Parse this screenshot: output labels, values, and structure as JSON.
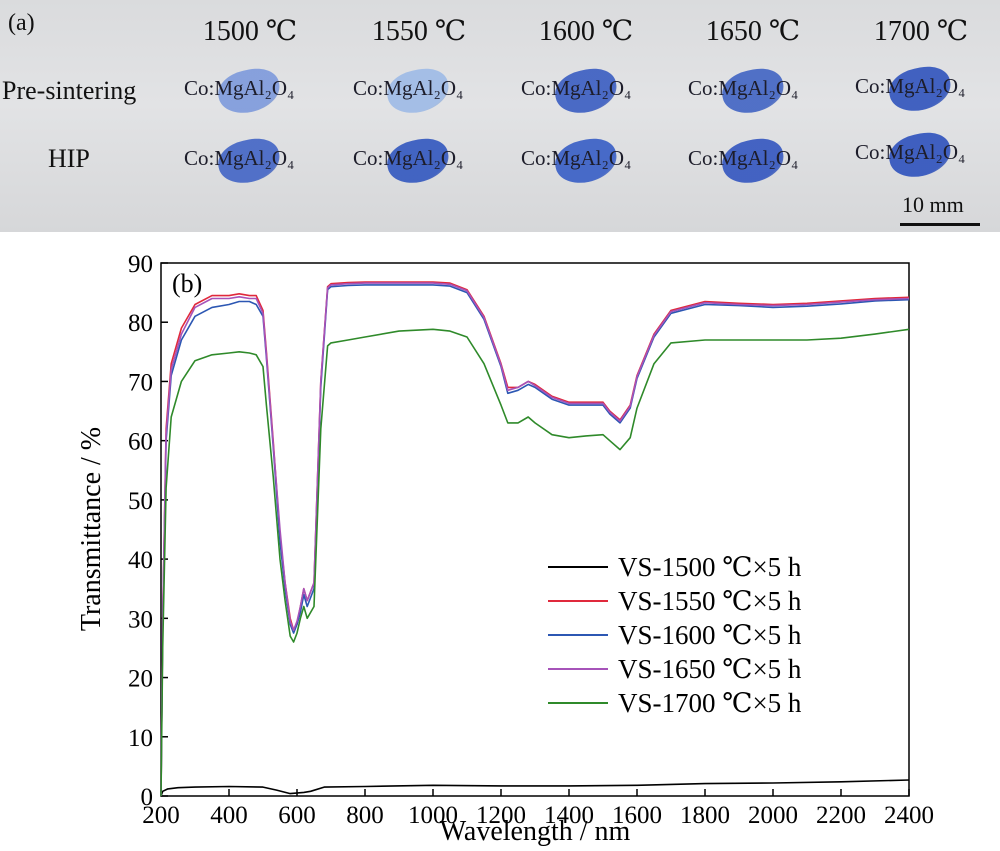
{
  "photo": {
    "panel_label": "(a)",
    "temperatures": [
      "1500 ℃",
      "1550 ℃",
      "1600 ℃",
      "1650 ℃",
      "1700 ℃"
    ],
    "rows": [
      {
        "label": "Pre-sintering",
        "sample_text": "Co:MgAl₂O₄",
        "colors": [
          "#7f9bdc",
          "#9fbbe6",
          "#3d5fc2",
          "#4466c4",
          "#3356bd"
        ]
      },
      {
        "label": "HIP",
        "sample_text": "Co:MgAl₂O₄",
        "colors": [
          "#4567c6",
          "#3559bf",
          "#3a60c6",
          "#3658c0",
          "#3154bd"
        ]
      }
    ],
    "scale_bar": "10 mm"
  },
  "chart_data": {
    "type": "line",
    "panel_label": "(b)",
    "xlabel": "Wavelength / nm",
    "ylabel": "Transmittance / %",
    "xlim": [
      200,
      2400
    ],
    "ylim": [
      0,
      90
    ],
    "xticks": [
      200,
      400,
      600,
      800,
      1000,
      1200,
      1400,
      1600,
      1800,
      2000,
      2200,
      2400
    ],
    "yticks": [
      0,
      10,
      20,
      30,
      40,
      50,
      60,
      70,
      80,
      90
    ],
    "grid": false,
    "legend_position": "lower-right",
    "series": [
      {
        "name": "VS-1500 ℃×5 h",
        "color": "#000000",
        "x": [
          200,
          205,
          220,
          250,
          300,
          400,
          500,
          540,
          580,
          620,
          640,
          680,
          800,
          1000,
          1200,
          1400,
          1600,
          1800,
          2000,
          2200,
          2400
        ],
        "y": [
          0,
          0.8,
          1.2,
          1.4,
          1.5,
          1.6,
          1.5,
          1.0,
          0.4,
          0.6,
          0.8,
          1.5,
          1.6,
          1.8,
          1.7,
          1.7,
          1.8,
          2.1,
          2.2,
          2.4,
          2.7
        ]
      },
      {
        "name": "VS-1550 ℃×5 h",
        "color": "#e0293c",
        "x": [
          200,
          205,
          215,
          230,
          260,
          300,
          350,
          400,
          430,
          460,
          480,
          500,
          510,
          530,
          550,
          565,
          580,
          590,
          600,
          610,
          620,
          630,
          650,
          670,
          690,
          700,
          750,
          800,
          900,
          1000,
          1050,
          1100,
          1150,
          1200,
          1220,
          1250,
          1280,
          1300,
          1350,
          1400,
          1450,
          1500,
          1520,
          1550,
          1580,
          1600,
          1650,
          1700,
          1800,
          1900,
          2000,
          2100,
          2200,
          2300,
          2400
        ],
        "y": [
          0,
          30,
          62,
          73,
          79,
          83,
          84.5,
          84.5,
          84.8,
          84.5,
          84.5,
          82,
          75,
          60,
          44,
          36,
          30,
          28,
          29,
          32,
          35,
          33,
          36,
          70,
          86,
          86.5,
          86.7,
          86.8,
          86.8,
          86.8,
          86.6,
          85.5,
          81,
          73,
          69,
          69,
          70,
          69.5,
          67.5,
          66.5,
          66.5,
          66.5,
          65,
          63.5,
          66,
          71,
          78,
          82,
          83.5,
          83.2,
          83,
          83.2,
          83.6,
          84,
          84.2
        ]
      },
      {
        "name": "VS-1600 ℃×5 h",
        "color": "#2c57b3",
        "x": [
          200,
          205,
          215,
          230,
          260,
          300,
          350,
          400,
          430,
          460,
          480,
          500,
          510,
          530,
          550,
          565,
          580,
          590,
          600,
          610,
          620,
          630,
          650,
          670,
          690,
          700,
          750,
          800,
          900,
          1000,
          1050,
          1100,
          1150,
          1200,
          1220,
          1250,
          1280,
          1300,
          1350,
          1400,
          1450,
          1500,
          1520,
          1550,
          1580,
          1600,
          1650,
          1700,
          1800,
          1900,
          2000,
          2100,
          2200,
          2300,
          2400
        ],
        "y": [
          0,
          29,
          60,
          71,
          77,
          81,
          82.5,
          83,
          83.5,
          83.5,
          83,
          81,
          74,
          59,
          43,
          35,
          29,
          27.5,
          29,
          31,
          34,
          32,
          35,
          69,
          85.5,
          86,
          86.2,
          86.3,
          86.3,
          86.3,
          86.1,
          85,
          80.5,
          72.5,
          68,
          68.5,
          69.5,
          69,
          67,
          66,
          66,
          66,
          64.5,
          63,
          65.5,
          70.5,
          77.5,
          81.5,
          83,
          82.8,
          82.5,
          82.7,
          83.1,
          83.6,
          83.8
        ]
      },
      {
        "name": "VS-1650 ℃×5 h",
        "color": "#a653b9",
        "x": [
          200,
          205,
          215,
          230,
          260,
          300,
          350,
          400,
          430,
          460,
          480,
          500,
          510,
          530,
          550,
          565,
          580,
          590,
          600,
          610,
          620,
          630,
          650,
          670,
          690,
          700,
          750,
          800,
          900,
          1000,
          1050,
          1100,
          1150,
          1200,
          1220,
          1250,
          1280,
          1300,
          1350,
          1400,
          1450,
          1500,
          1520,
          1550,
          1580,
          1600,
          1650,
          1700,
          1800,
          1900,
          2000,
          2100,
          2200,
          2300,
          2400
        ],
        "y": [
          0,
          30,
          61,
          72,
          78,
          82.5,
          84,
          84,
          84.3,
          84,
          84,
          81.5,
          74.5,
          59.5,
          45,
          36,
          29.5,
          28,
          29.5,
          32,
          35,
          33,
          36,
          70,
          85.8,
          86.3,
          86.5,
          86.6,
          86.6,
          86.6,
          86.4,
          85.3,
          80.8,
          72.8,
          68.5,
          69,
          70,
          69.3,
          67.3,
          66.3,
          66.3,
          66.3,
          64.8,
          63.3,
          65.8,
          70.8,
          77.8,
          81.8,
          83.3,
          83,
          82.8,
          83,
          83.4,
          83.8,
          84
        ]
      },
      {
        "name": "VS-1700 ℃×5 h",
        "color": "#2f8a2a",
        "x": [
          200,
          205,
          215,
          230,
          260,
          300,
          350,
          400,
          430,
          460,
          480,
          500,
          510,
          530,
          550,
          565,
          580,
          590,
          600,
          610,
          620,
          630,
          650,
          670,
          690,
          700,
          750,
          800,
          900,
          1000,
          1050,
          1100,
          1150,
          1200,
          1220,
          1250,
          1280,
          1300,
          1350,
          1400,
          1450,
          1500,
          1520,
          1550,
          1580,
          1600,
          1650,
          1700,
          1800,
          1900,
          2000,
          2100,
          2200,
          2300,
          2400
        ],
        "y": [
          0,
          25,
          52,
          64,
          70,
          73.5,
          74.5,
          74.8,
          75,
          74.8,
          74.5,
          72.5,
          66,
          54,
          40,
          33,
          27,
          26,
          27.5,
          30,
          32,
          30,
          32,
          62,
          76,
          76.5,
          77,
          77.5,
          78.5,
          78.8,
          78.5,
          77.5,
          73,
          66,
          63,
          63,
          64,
          63,
          61,
          60.5,
          60.8,
          61,
          60,
          58.5,
          60.5,
          65.5,
          73,
          76.5,
          77,
          77,
          77,
          77,
          77.3,
          78,
          78.8
        ]
      }
    ]
  }
}
